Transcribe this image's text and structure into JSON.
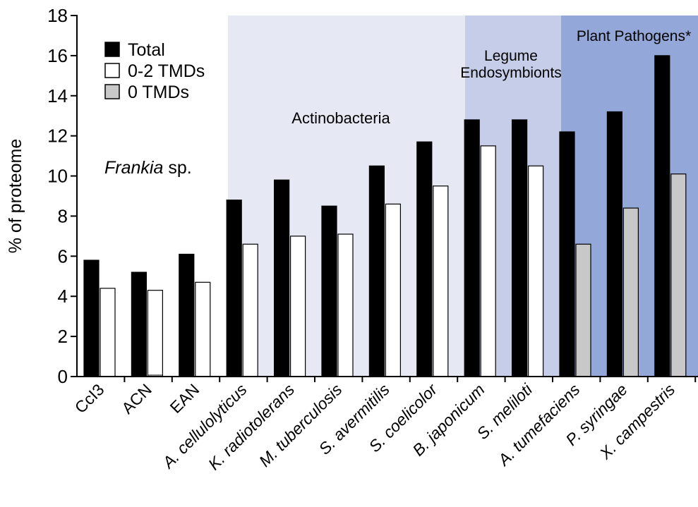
{
  "chart_data": {
    "type": "bar",
    "title": "",
    "ylabel": "% of proteome",
    "xlabel": "",
    "ylim": [
      0,
      18
    ],
    "yticks": [
      0,
      2,
      4,
      6,
      8,
      10,
      12,
      14,
      16,
      18
    ],
    "grid": false,
    "legend": {
      "placement": "top-left"
    },
    "categories": [
      {
        "label": "CcI3",
        "italic": false
      },
      {
        "label": "ACN",
        "italic": false
      },
      {
        "label": "EAN",
        "italic": false
      },
      {
        "label": "A. cellulolyticus",
        "italic": true
      },
      {
        "label": "K. radiotolerans",
        "italic": true
      },
      {
        "label": "M. tuberculosis",
        "italic": true
      },
      {
        "label": "S. avermitilis",
        "italic": true
      },
      {
        "label": "S. coelicolor",
        "italic": true
      },
      {
        "label": "B. japonicum",
        "italic": true
      },
      {
        "label": "S. meliloti",
        "italic": true
      },
      {
        "label": "A. tumefaciens",
        "italic": true
      },
      {
        "label": "P. syringae",
        "italic": true
      },
      {
        "label": "X. campestris",
        "italic": true
      }
    ],
    "series": [
      {
        "name": "Total",
        "color": "#000000",
        "values": [
          5.8,
          5.2,
          6.1,
          8.8,
          9.8,
          8.5,
          10.5,
          11.7,
          12.8,
          12.8,
          12.2,
          13.2,
          16.0
        ]
      },
      {
        "name": "0-2 TMDs",
        "color": "#ffffff",
        "values": [
          4.4,
          4.3,
          4.7,
          6.6,
          7.0,
          7.1,
          8.6,
          9.5,
          11.5,
          10.5,
          null,
          null,
          null
        ]
      },
      {
        "name": "0 TMDs",
        "color": "#c8c8c8",
        "values": [
          null,
          null,
          null,
          null,
          null,
          null,
          null,
          null,
          null,
          null,
          6.6,
          8.4,
          10.1
        ]
      }
    ],
    "groups": [
      {
        "label": "Actinobacteria",
        "color": "#e6e8f4",
        "from": 3,
        "to": 7
      },
      {
        "label": "Legume Endosymbionts",
        "lines": [
          "Legume",
          "Endosymbionts"
        ],
        "color": "#c5cde9",
        "from": 8,
        "to": 9
      },
      {
        "label": "Plant Pathogens*",
        "color": "#93a8d8",
        "from": 10,
        "to": 12
      }
    ],
    "annotation": {
      "italic": "Frankia",
      "plain": " sp."
    }
  }
}
